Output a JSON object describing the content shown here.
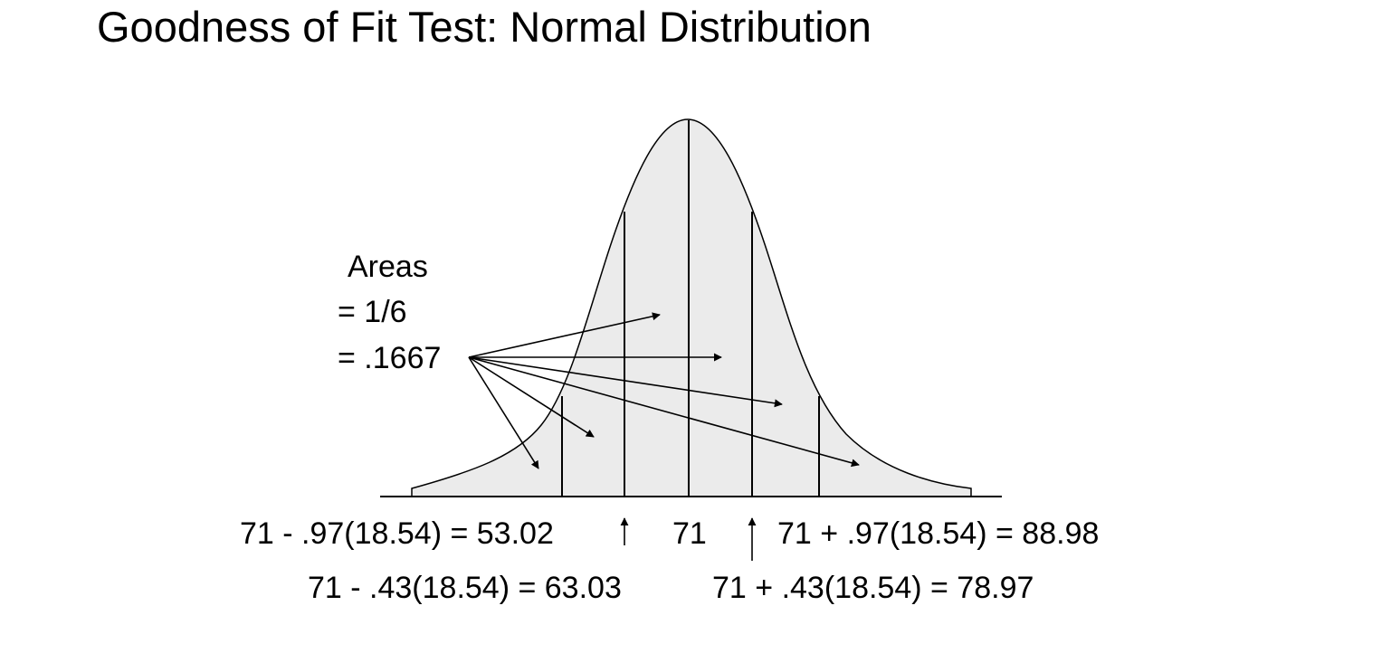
{
  "title": "Goodness of Fit Test:  Normal Distribution",
  "areas_label": {
    "line1": "Areas",
    "line2": "= 1/6",
    "line3": "= .1667"
  },
  "boundaries": {
    "left_outer": "71 - .97(18.54) = 53.02",
    "left_inner": "71 - .43(18.54) = 63.03",
    "center": "71",
    "right_inner": "71 + .43(18.54) = 78.97",
    "right_outer": "71 + .97(18.54) = 88.98"
  },
  "colors": {
    "curve_fill": "#ebebeb",
    "stroke": "#000000"
  }
}
